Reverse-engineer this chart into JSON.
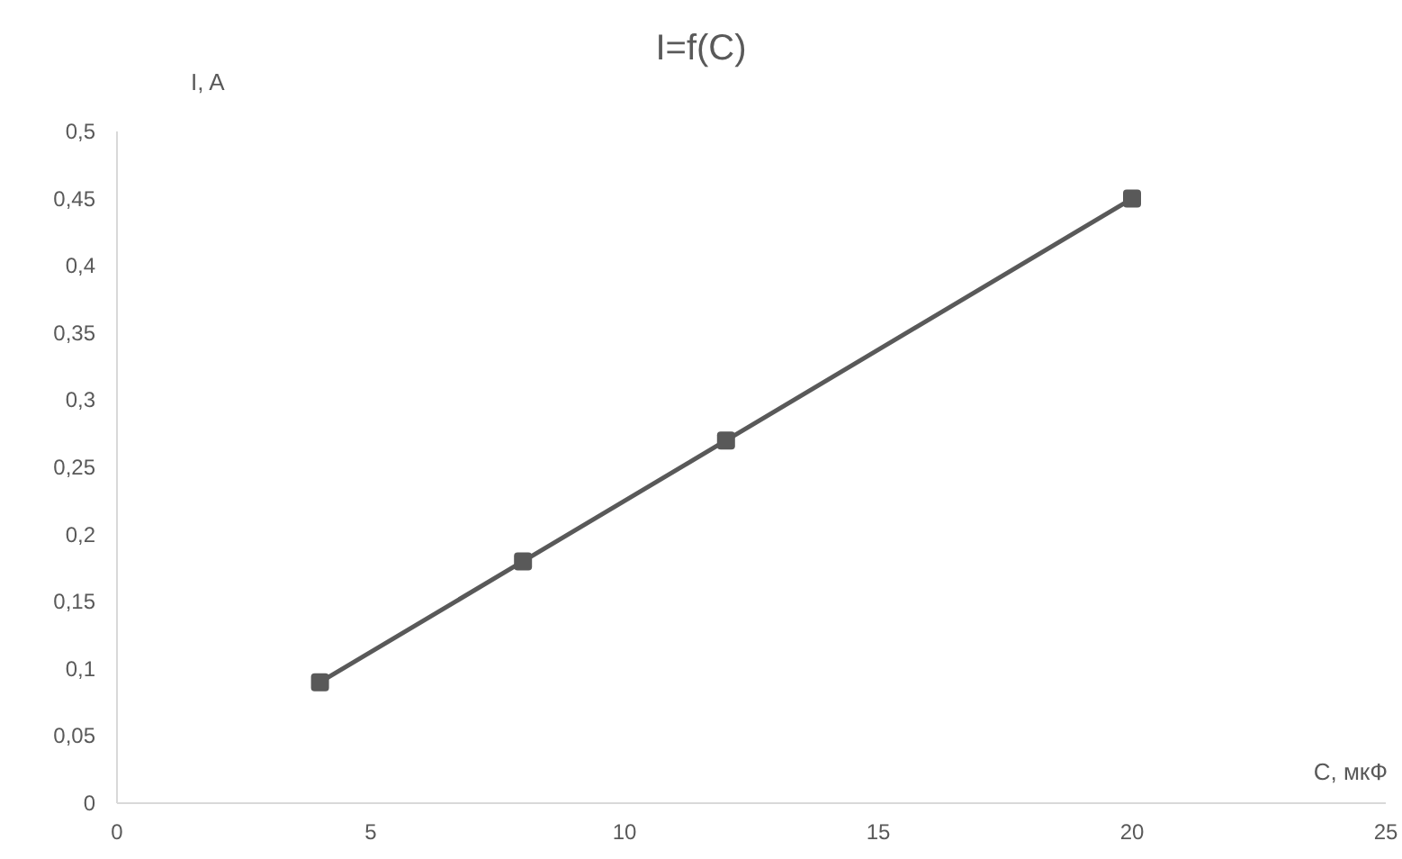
{
  "chart_data": {
    "type": "line",
    "title": "I=f(C)",
    "xlabel": "C, мкФ",
    "ylabel": "I, A",
    "x": [
      4,
      8,
      12,
      20
    ],
    "series": [
      {
        "color": "#595959",
        "values": [
          0.09,
          0.18,
          0.27,
          0.45
        ]
      }
    ],
    "xlim": [
      0,
      25
    ],
    "xticks": [
      0,
      5,
      10,
      15,
      20,
      25
    ],
    "ylim": [
      0,
      0.5
    ],
    "yticks": [
      0,
      {
        "value": 0.05,
        "label": "0,05"
      },
      {
        "value": 0.1,
        "label": "0,1"
      },
      {
        "value": 0.15,
        "label": "0,15"
      },
      {
        "value": 0.2,
        "label": "0,2"
      },
      {
        "value": 0.25,
        "label": "0,25"
      },
      {
        "value": 0.3,
        "label": "0,3"
      },
      {
        "value": 0.35,
        "label": "0,35"
      },
      {
        "value": 0.4,
        "label": "0,4"
      },
      {
        "value": 0.45,
        "label": "0,45"
      },
      {
        "value": 0.5,
        "label": "0,5"
      }
    ],
    "grid": false,
    "legend": false,
    "marker": "square",
    "line_style": "solid"
  }
}
